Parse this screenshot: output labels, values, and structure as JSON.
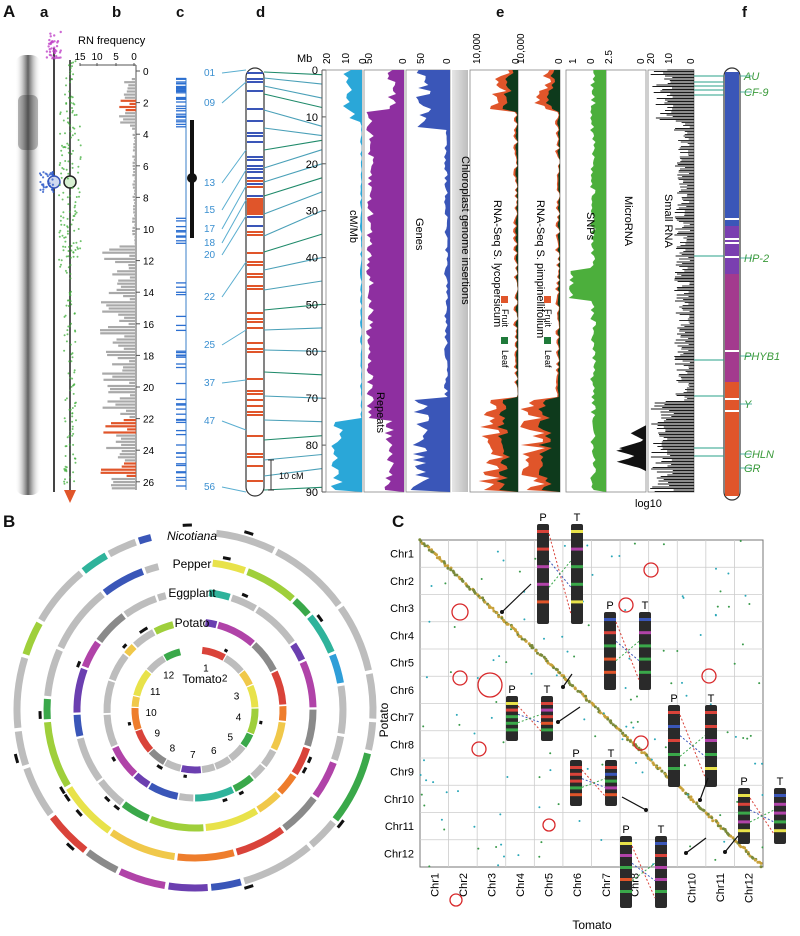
{
  "panelA": {
    "label": "A",
    "sub_labels": [
      "a",
      "b",
      "c",
      "d",
      "e",
      "f"
    ],
    "rn_title": "RN frequency",
    "rn_ticks": [
      "15",
      "10",
      "5",
      "0"
    ],
    "mb_ticks": [
      "0",
      "2",
      "4",
      "6",
      "8",
      "10",
      "12",
      "14",
      "16",
      "18",
      "20",
      "22",
      "24",
      "26"
    ],
    "cm_labels": [
      "01",
      "09",
      "13",
      "15",
      "17",
      "18",
      "20",
      "22",
      "25",
      "37",
      "47",
      "56"
    ],
    "scale_bar": "10 cM",
    "track_header": "Mb",
    "track_top_ticks": {
      "t1": [
        "20",
        "10",
        "0"
      ],
      "t2": [
        "50",
        "0"
      ],
      "t3": [
        "50",
        "0"
      ],
      "t4": [
        "10,000",
        "0"
      ],
      "t5": [
        "10,000",
        "0"
      ],
      "t6": [
        "1",
        "0"
      ],
      "t7": [
        "2.5",
        "0"
      ],
      "t8": [
        "20",
        "10",
        "0"
      ]
    },
    "mb_axis": [
      "0",
      "10",
      "20",
      "30",
      "40",
      "50",
      "60",
      "70",
      "80",
      "90"
    ],
    "track_titles": {
      "cm": "cM/Mb",
      "repeats": "Repeats",
      "genes": "Genes",
      "chloro": "Chloroplast genome insertions",
      "rna1": "RNA-Seq S. lycopersicum",
      "rna2": "RNA-Seq S. pimpinellifolium",
      "snps": "SNPs",
      "mirna": "MicroRNA",
      "srna": "Small RNA"
    },
    "legend": {
      "leaf": "Leaf",
      "fruit": "Fruit"
    },
    "log_label": "log10",
    "genes": [
      "AU",
      "CF-9",
      "HP-2",
      "PHYB1",
      "Y",
      "CHLN",
      "GR"
    ]
  },
  "panelB": {
    "label": "B",
    "rings": [
      "Nicotiana",
      "Pepper",
      "Eggplant",
      "Potato",
      "Tomato"
    ],
    "chromosomes": [
      "1",
      "2",
      "3",
      "4",
      "5",
      "6",
      "7",
      "8",
      "9",
      "10",
      "11",
      "12"
    ]
  },
  "panelC": {
    "label": "C",
    "ylabel": "Potato",
    "xlabel": "Tomato",
    "rows": [
      "Chr1",
      "Chr2",
      "Chr3",
      "Chr4",
      "Chr5",
      "Chr6",
      "Chr7",
      "Chr8",
      "Chr9",
      "Chr10",
      "Chr11",
      "Chr12"
    ],
    "cols": [
      "Chr1",
      "Chr2",
      "Chr3",
      "Chr4",
      "Chr5",
      "Chr6",
      "Chr7",
      "Chr8",
      "Chr9",
      "Chr10",
      "Chr11",
      "Chr12"
    ],
    "inv_labels": [
      "P",
      "T"
    ]
  },
  "colors": {
    "green": "#4caf3c",
    "purple": "#8e2fa0",
    "blue": "#3a56b8",
    "cyan": "#2aa7d8",
    "orange": "#e0552a",
    "teal": "#3a9ab0",
    "gray": "#9a9a9a",
    "gene_label": "#3a9a3a"
  }
}
